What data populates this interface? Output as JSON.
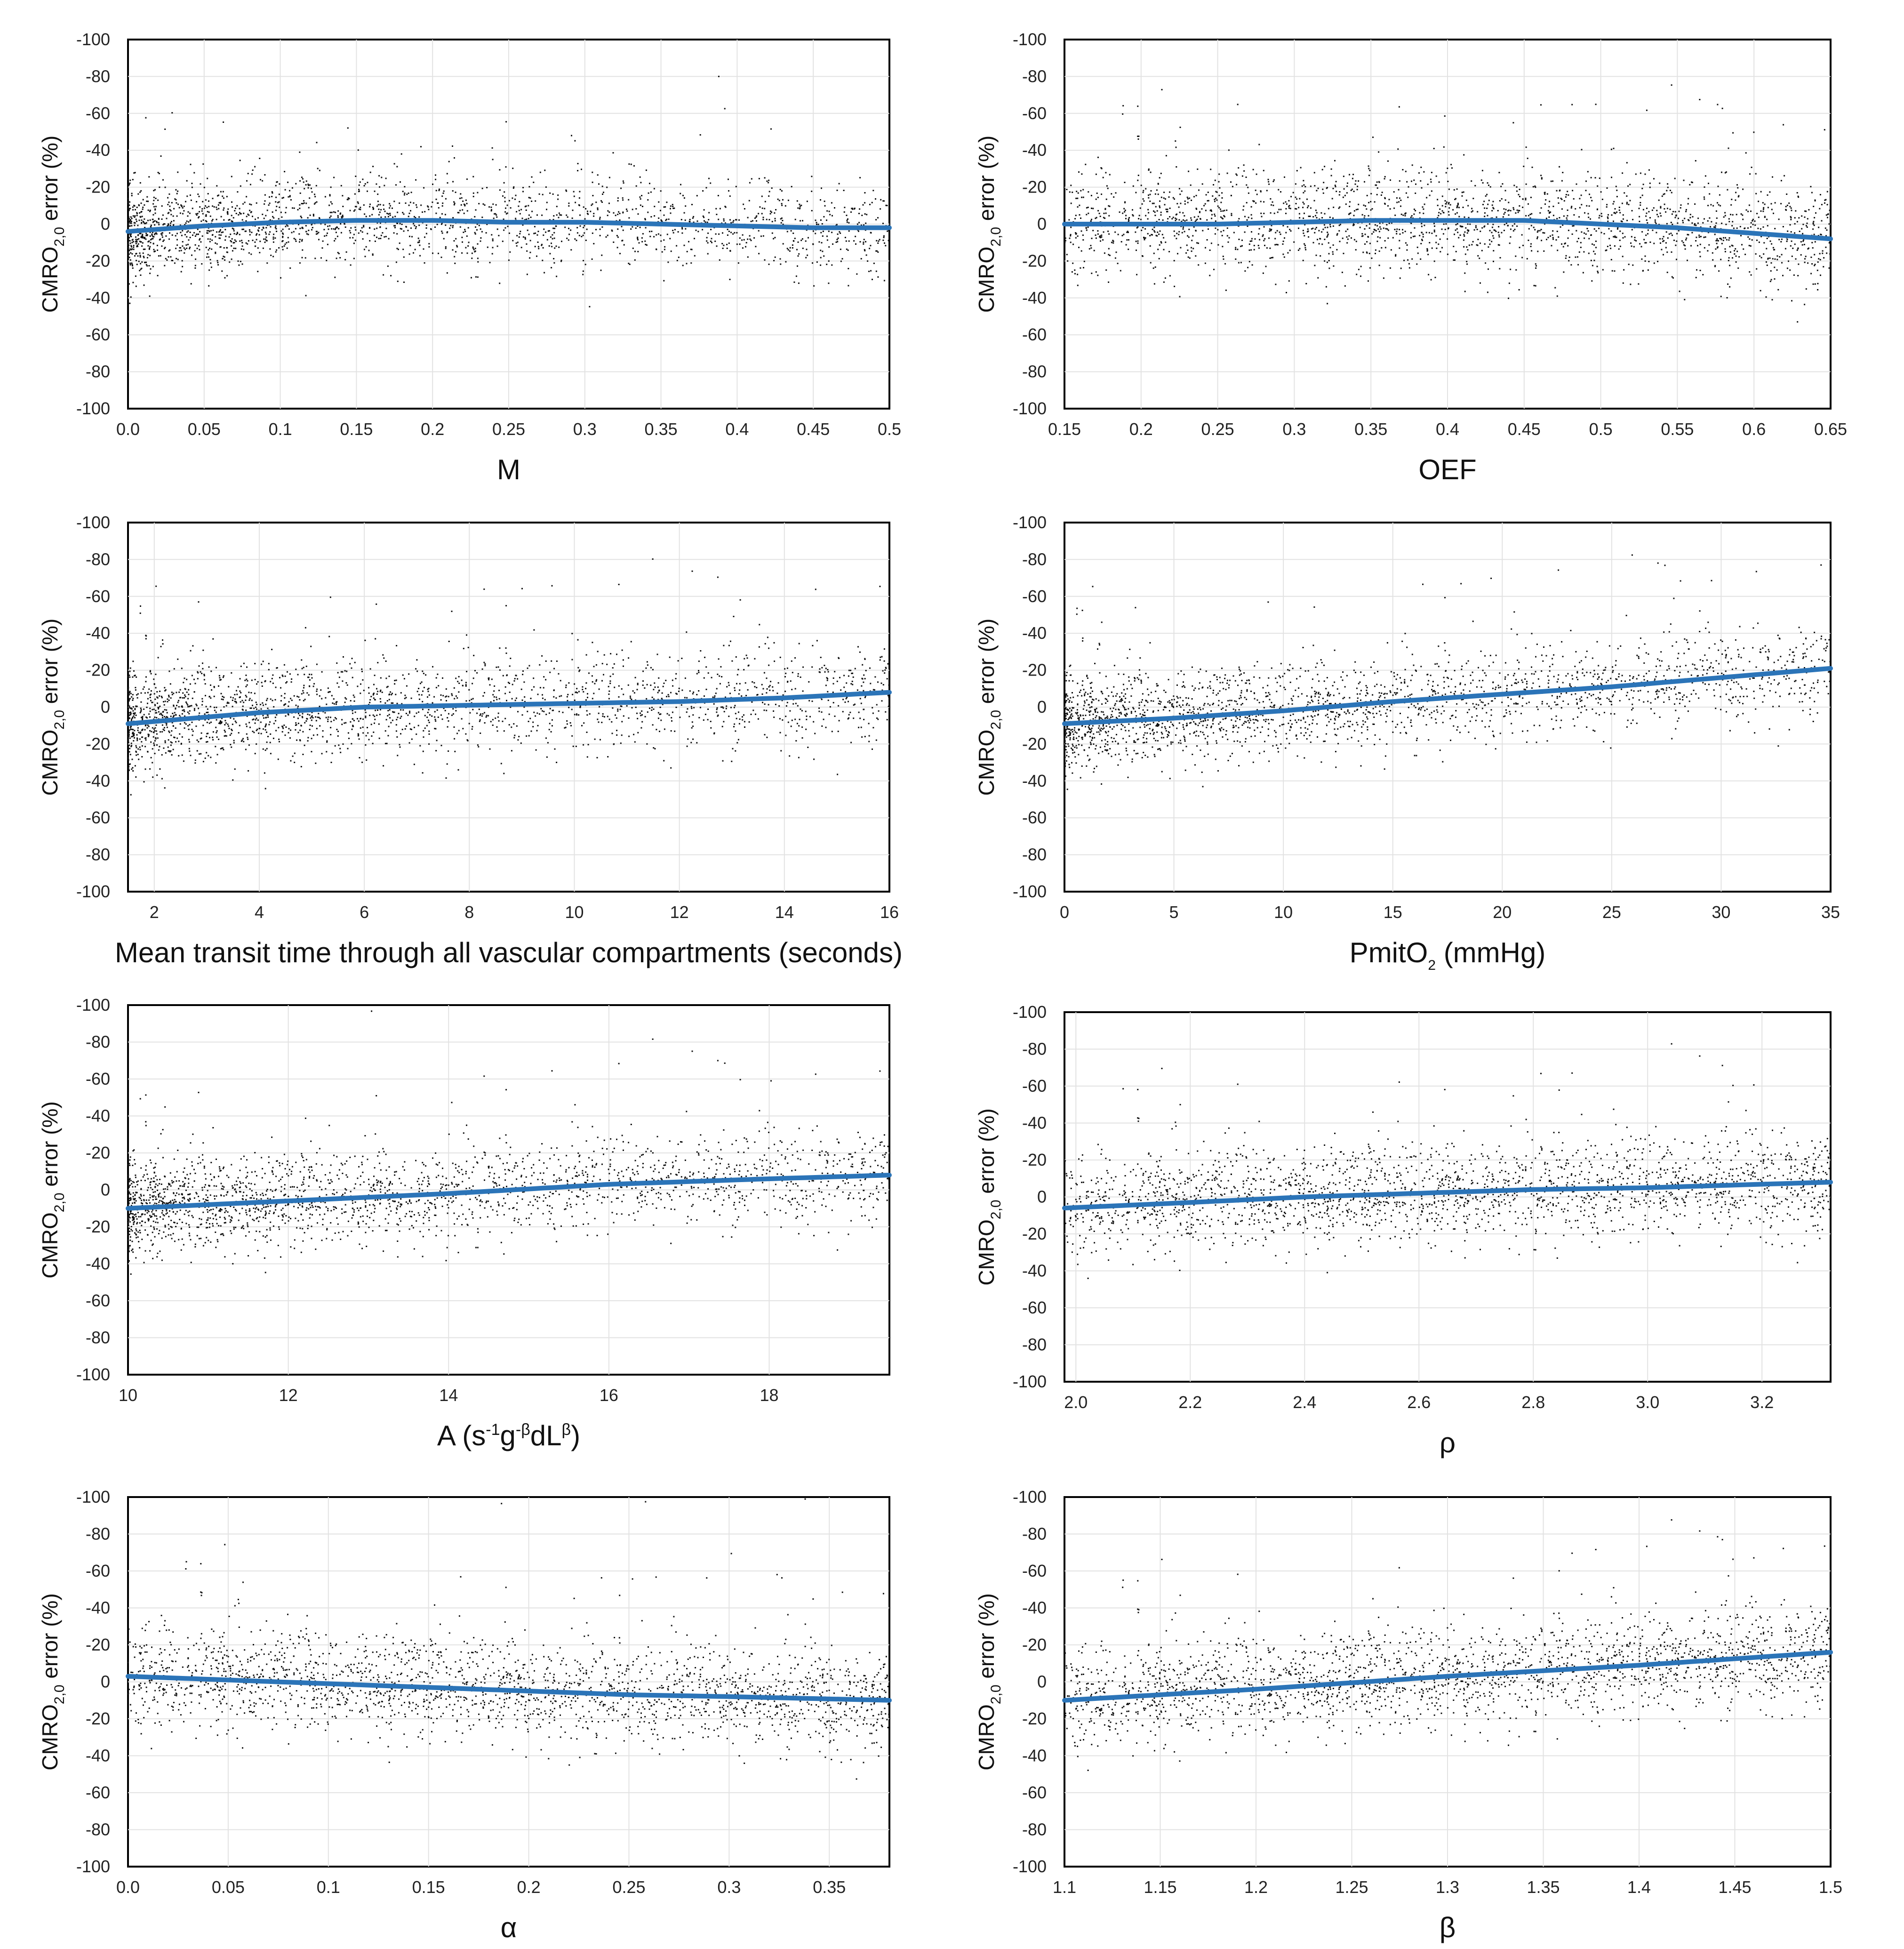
{
  "figure": {
    "y_axis_label": {
      "prefix": "CMRO",
      "sub": "2,0",
      "suffix": " error (%)"
    },
    "colors": {
      "trend": "#2b74b8",
      "points": "#111111",
      "grid": "#e2e2e2",
      "frame": "#000000"
    }
  },
  "chart_data": [
    {
      "type": "scatter",
      "id": "M",
      "xlabel": {
        "main": "M"
      },
      "xlim": [
        0.0,
        0.5
      ],
      "ylim": [
        -100,
        100
      ],
      "y_inverted": true,
      "x_ticks": [
        0.0,
        0.05,
        0.1,
        0.15,
        0.2,
        0.25,
        0.3,
        0.35,
        0.4,
        0.45,
        0.5
      ],
      "x_tick_labels": [
        "0.0",
        "0.05",
        "0.1",
        "0.15",
        "0.2",
        "0.25",
        "0.3",
        "0.35",
        "0.4",
        "0.45",
        "0.5"
      ],
      "y_ticks": [
        -100,
        -80,
        -60,
        -40,
        -20,
        0,
        -20,
        -40,
        -60,
        -80,
        -100
      ],
      "n_points_approx": 10000,
      "point_density_profile": "dense near x=0-0.12, thinning toward 0.5",
      "trend_line": {
        "x": [
          0.0,
          0.05,
          0.1,
          0.15,
          0.2,
          0.25,
          0.3,
          0.35,
          0.4,
          0.45,
          0.5
        ],
        "y": [
          4,
          1,
          -1,
          -2,
          -2,
          -1,
          -1,
          0,
          1,
          2,
          2
        ]
      },
      "scatter_spread_sd": 12
    },
    {
      "type": "scatter",
      "id": "OEF",
      "xlabel": {
        "main": "OEF"
      },
      "xlim": [
        0.15,
        0.65
      ],
      "ylim": [
        -100,
        100
      ],
      "y_inverted": true,
      "x_ticks": [
        0.15,
        0.2,
        0.25,
        0.3,
        0.35,
        0.4,
        0.45,
        0.5,
        0.55,
        0.6,
        0.65
      ],
      "x_tick_labels": [
        "0.15",
        "0.2",
        "0.25",
        "0.3",
        "0.35",
        "0.4",
        "0.45",
        "0.5",
        "0.55",
        "0.6",
        "0.65"
      ],
      "y_ticks": [
        -100,
        -80,
        -60,
        -40,
        -20,
        0,
        -20,
        -40,
        -60,
        -80,
        -100
      ],
      "n_points_approx": 10000,
      "point_density_profile": "roughly uniform in x",
      "trend_line": {
        "x": [
          0.15,
          0.2,
          0.25,
          0.3,
          0.35,
          0.4,
          0.45,
          0.5,
          0.55,
          0.6,
          0.65
        ],
        "y": [
          0,
          0,
          0,
          -1,
          -2,
          -2,
          -2,
          0,
          2,
          5,
          8
        ]
      },
      "scatter_spread_sd": 14
    },
    {
      "type": "scatter",
      "id": "MTT",
      "xlabel": {
        "main": "Mean transit time through all vascular compartments (seconds)"
      },
      "xlim": [
        1.5,
        16
      ],
      "ylim": [
        -100,
        100
      ],
      "y_inverted": true,
      "x_ticks": [
        2,
        4,
        6,
        8,
        10,
        12,
        14,
        16
      ],
      "x_tick_labels": [
        "2",
        "4",
        "6",
        "8",
        "10",
        "12",
        "14",
        "16"
      ],
      "y_ticks": [
        -100,
        -80,
        -60,
        -40,
        -20,
        0,
        -20,
        -40,
        -60,
        -80,
        -100
      ],
      "n_points_approx": 10000,
      "point_density_profile": "densest at 2-5 s, thinning toward 16 s",
      "trend_line": {
        "x": [
          1.5,
          4,
          6,
          8,
          10,
          12,
          14,
          16
        ],
        "y": [
          9,
          3,
          0,
          -1,
          -2,
          -3,
          -5,
          -8
        ]
      },
      "scatter_spread_sd": 13
    },
    {
      "type": "scatter",
      "id": "PmitO2",
      "xlabel": {
        "main": "PmitO",
        "sub": "2",
        "suffix": " (mmHg)"
      },
      "xlim": [
        0,
        35
      ],
      "ylim": [
        -100,
        100
      ],
      "y_inverted": true,
      "x_ticks": [
        0,
        5,
        10,
        15,
        20,
        25,
        30,
        35
      ],
      "x_tick_labels": [
        "0",
        "5",
        "10",
        "15",
        "20",
        "25",
        "30",
        "35"
      ],
      "y_ticks": [
        -100,
        -80,
        -60,
        -40,
        -20,
        0,
        -20,
        -40,
        -60,
        -80,
        -100
      ],
      "n_points_approx": 10000,
      "point_density_profile": "densest at 2-12 mmHg, sparse above 25",
      "trend_line": {
        "x": [
          0,
          5,
          10,
          15,
          20,
          25,
          30,
          35
        ],
        "y": [
          9,
          6,
          2,
          -3,
          -7,
          -11,
          -16,
          -21
        ]
      },
      "scatter_spread_sd": 12
    },
    {
      "type": "scatter",
      "id": "A",
      "xlabel": {
        "main": "A (s",
        "sup1": "-1",
        "mid1": "g",
        "sup2": "-β",
        "mid2": "dL",
        "sup3": "β",
        "suffix": ")"
      },
      "xlim": [
        10,
        19.5
      ],
      "ylim": [
        -100,
        100
      ],
      "y_inverted": true,
      "x_ticks": [
        10,
        12,
        14,
        16,
        18
      ],
      "x_tick_labels": [
        "10",
        "12",
        "14",
        "16",
        "18"
      ],
      "y_ticks": [
        -100,
        -80,
        -60,
        -40,
        -20,
        0,
        -20,
        -40,
        -60,
        -80,
        -100
      ],
      "n_points_approx": 10000,
      "point_density_profile": "densest around 13-17, sparser at edges",
      "trend_line": {
        "x": [
          10,
          12,
          14,
          16,
          18,
          19.5
        ],
        "y": [
          10,
          6,
          2,
          -3,
          -6,
          -8
        ]
      },
      "scatter_spread_sd": 12
    },
    {
      "type": "scatter",
      "id": "rho",
      "xlabel": {
        "main": "ρ"
      },
      "xlim": [
        1.98,
        3.32
      ],
      "ylim": [
        -100,
        100
      ],
      "y_inverted": true,
      "x_ticks": [
        2.0,
        2.2,
        2.4,
        2.6,
        2.8,
        3.0,
        3.2
      ],
      "x_tick_labels": [
        "2.0",
        "2.2",
        "2.4",
        "2.6",
        "2.8",
        "3.0",
        "3.2"
      ],
      "y_ticks": [
        -100,
        -80,
        -60,
        -40,
        -20,
        0,
        -20,
        -40,
        -60,
        -80,
        -100
      ],
      "n_points_approx": 10000,
      "point_density_profile": "roughly uniform in x",
      "trend_line": {
        "x": [
          1.98,
          2.2,
          2.4,
          2.6,
          2.8,
          3.0,
          3.32
        ],
        "y": [
          6,
          3,
          0,
          -2,
          -4,
          -5,
          -8
        ]
      },
      "scatter_spread_sd": 13
    },
    {
      "type": "scatter",
      "id": "alpha",
      "xlabel": {
        "main": "α"
      },
      "xlim": [
        0.0,
        0.38
      ],
      "ylim": [
        -100,
        100
      ],
      "y_inverted": true,
      "x_ticks": [
        0.0,
        0.05,
        0.1,
        0.15,
        0.2,
        0.25,
        0.3,
        0.35
      ],
      "x_tick_labels": [
        "0.0",
        "0.05",
        "0.1",
        "0.15",
        "0.2",
        "0.25",
        "0.3",
        "0.35"
      ],
      "y_ticks": [
        -100,
        -80,
        -60,
        -40,
        -20,
        0,
        -20,
        -40,
        -60,
        -80,
        -100
      ],
      "n_points_approx": 10000,
      "point_density_profile": "roughly uniform in x",
      "trend_line": {
        "x": [
          0.0,
          0.05,
          0.1,
          0.15,
          0.2,
          0.25,
          0.3,
          0.38
        ],
        "y": [
          -3,
          -1,
          1,
          3,
          5,
          7,
          8,
          10
        ]
      },
      "scatter_spread_sd": 13
    },
    {
      "type": "scatter",
      "id": "beta",
      "xlabel": {
        "main": "β"
      },
      "xlim": [
        1.1,
        1.5
      ],
      "ylim": [
        -100,
        100
      ],
      "y_inverted": true,
      "x_ticks": [
        1.1,
        1.15,
        1.2,
        1.25,
        1.3,
        1.35,
        1.4,
        1.45,
        1.5
      ],
      "x_tick_labels": [
        "1.1",
        "1.15",
        "1.2",
        "1.25",
        "1.3",
        "1.35",
        "1.4",
        "1.45",
        "1.5"
      ],
      "y_ticks": [
        -100,
        -80,
        -60,
        -40,
        -20,
        0,
        -20,
        -40,
        -60,
        -80,
        -100
      ],
      "n_points_approx": 10000,
      "point_density_profile": "roughly uniform in x",
      "trend_line": {
        "x": [
          1.1,
          1.2,
          1.3,
          1.4,
          1.5
        ],
        "y": [
          10,
          4,
          -3,
          -9,
          -16
        ]
      },
      "scatter_spread_sd": 13
    }
  ]
}
